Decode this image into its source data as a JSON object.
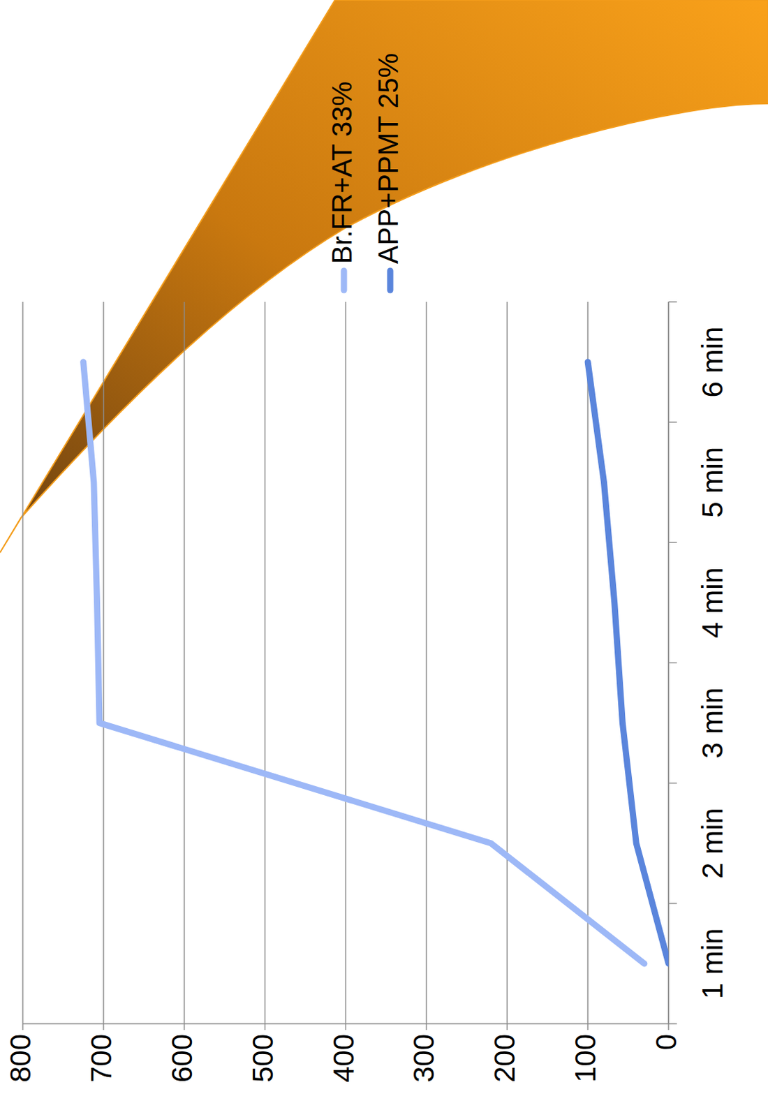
{
  "chart_data": {
    "type": "line",
    "categories": [
      "1 min",
      "2 min",
      "3 min",
      "4 min",
      "5 min",
      "6 min"
    ],
    "series": [
      {
        "name": "Br.FR+AT 33%",
        "color": "#9db8f7",
        "values": [
          30,
          220,
          705,
          708,
          712,
          725
        ]
      },
      {
        "name": "APP+PPMT 25%",
        "color": "#5a85dc",
        "values": [
          0,
          40,
          57,
          67,
          80,
          100
        ]
      }
    ],
    "ylim": [
      0,
      800
    ],
    "yticks": [
      0,
      100,
      200,
      300,
      400,
      500,
      600,
      700,
      800
    ],
    "grid": true,
    "legend": "right"
  }
}
